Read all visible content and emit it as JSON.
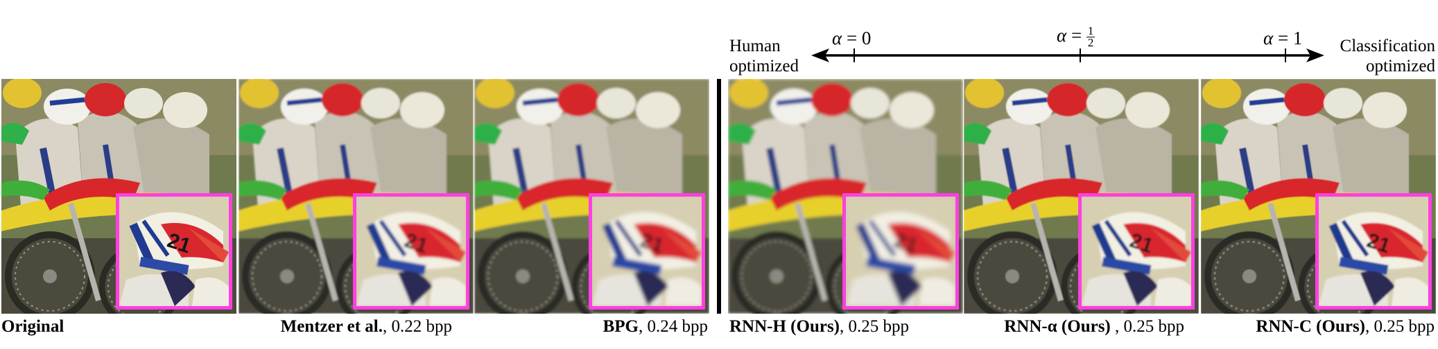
{
  "axis": {
    "left_label_line1": "Human",
    "left_label_line2": "optimized",
    "right_label_line1": "Classification",
    "right_label_line2": "optimized",
    "ticks": [
      {
        "symbol": "α",
        "eq": "=",
        "value": "0"
      },
      {
        "symbol": "α",
        "eq": "=",
        "num": "1",
        "den": "2"
      },
      {
        "symbol": "α",
        "eq": "=",
        "value": "1"
      }
    ]
  },
  "panels": [
    {
      "method": "Original",
      "rate": ""
    },
    {
      "method": "Mentzer et al.",
      "rate": ", 0.22 bpp"
    },
    {
      "method": "BPG",
      "rate": ", 0.24 bpp"
    },
    {
      "method": "RNN-H (Ours)",
      "rate": ", 0.25 bpp"
    },
    {
      "method": "RNN-α (Ours)",
      "rate": " , 0.25 bpp"
    },
    {
      "method": "RNN-C (Ours)",
      "rate": ", 0.25 bpp"
    }
  ],
  "colors": {
    "crop_border": "#ff3fe2",
    "divider": "#000000"
  },
  "image_content": {
    "scene": "motocross riders in helmets on dirt bikes",
    "helmet_number": "21"
  }
}
